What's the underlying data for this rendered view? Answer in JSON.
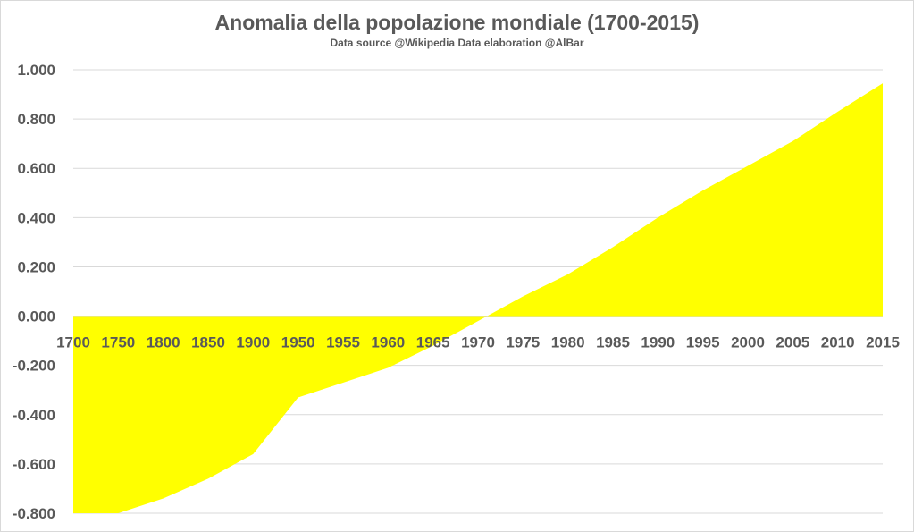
{
  "chart_data": {
    "type": "area",
    "title": "Anomalia della popolazione mondiale (1700-2015)",
    "subtitle": "Data source @Wikipedia Data elaboration @AlBar",
    "categories": [
      "1700",
      "1750",
      "1800",
      "1850",
      "1900",
      "1950",
      "1955",
      "1960",
      "1965",
      "1970",
      "1975",
      "1980",
      "1985",
      "1990",
      "1995",
      "2000",
      "2005",
      "2010",
      "2015"
    ],
    "values": [
      -0.8,
      -0.8,
      -0.74,
      -0.66,
      -0.56,
      -0.33,
      -0.27,
      -0.21,
      -0.12,
      -0.02,
      0.08,
      0.17,
      0.28,
      0.4,
      0.51,
      0.61,
      0.71,
      0.83,
      0.945
    ],
    "y_tick_labels": [
      "1.000",
      "0.800",
      "0.600",
      "0.400",
      "0.200",
      "0.000",
      "-0.200",
      "-0.400",
      "-0.600",
      "-0.800"
    ],
    "ylim": [
      -0.8,
      1.0
    ],
    "grid": true,
    "fill_color": "#ffff00",
    "grid_color": "#d9d9d9",
    "text_color": "#595959"
  }
}
